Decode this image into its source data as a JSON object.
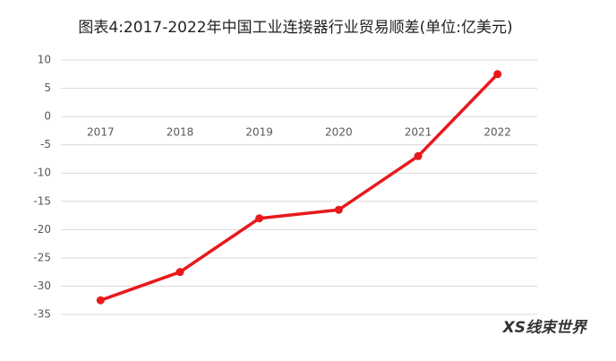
{
  "chart_data": {
    "type": "line",
    "title": "图表4:2017-2022年中国工业连接器行业贸易顺差(单位:亿美元)",
    "categories": [
      "2017",
      "2018",
      "2019",
      "2020",
      "2021",
      "2022"
    ],
    "values": [
      -32.5,
      -27.5,
      -18,
      -16.5,
      -7,
      7.5
    ],
    "color": "#e8191b",
    "ylim": [
      -35,
      10
    ],
    "yticks": [
      -35,
      -30,
      -25,
      -20,
      -15,
      -10,
      -5,
      0,
      5,
      10
    ],
    "grid": true,
    "watermark": "XS线束世界"
  }
}
